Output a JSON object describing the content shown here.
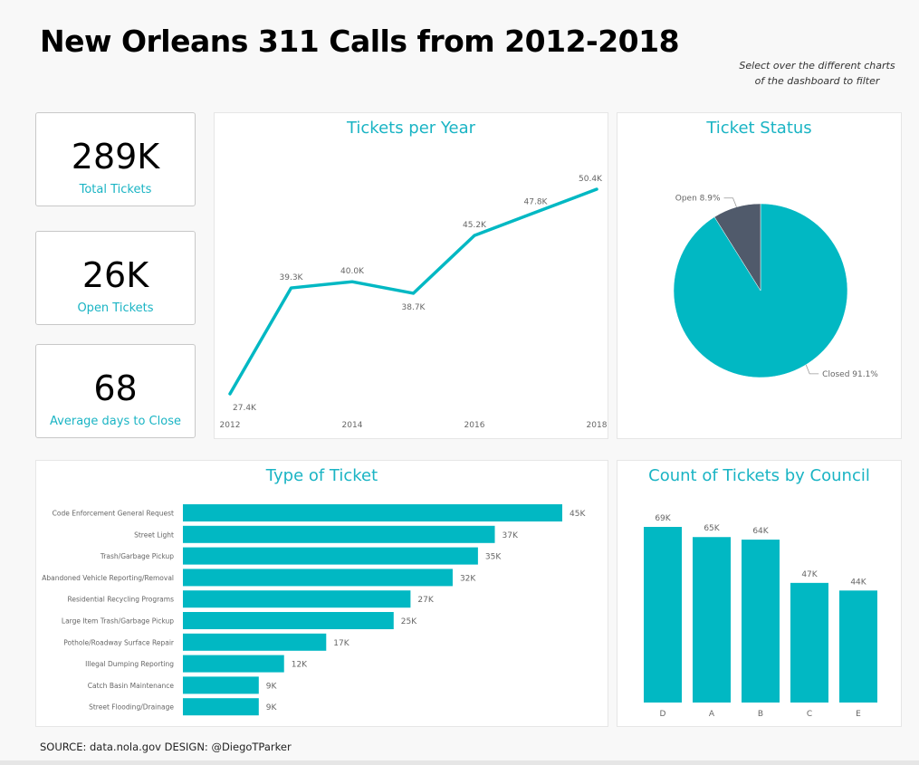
{
  "header": {
    "title": "New Orleans 311 Calls from 2012-2018",
    "hint_line1": "Select over the different charts",
    "hint_line2": "of the dashboard to filter"
  },
  "kpis": [
    {
      "value": "289K",
      "label": "Total Tickets"
    },
    {
      "value": "26K",
      "label": "Open Tickets"
    },
    {
      "value": "68",
      "label": "Average days to Close"
    }
  ],
  "footer": {
    "source": "SOURCE: data.nola.gov DESIGN: @DiegoTParker"
  },
  "colors": {
    "accent": "#01b8c3",
    "title_accent": "#1ab4c4",
    "dark_slice": "#505a6b",
    "label_gray": "#666666"
  },
  "chart_data": [
    {
      "id": "tickets-per-year",
      "type": "line",
      "title": "Tickets per Year",
      "x": [
        2012,
        2013,
        2014,
        2015,
        2016,
        2017,
        2018
      ],
      "values": [
        27.4,
        39.3,
        40.0,
        38.7,
        45.2,
        47.8,
        50.4
      ],
      "data_labels": [
        "27.4K",
        "39.3K",
        "40.0K",
        "38.7K",
        "45.2K",
        "47.8K",
        "50.4K"
      ],
      "label_position": [
        "below",
        "above",
        "above",
        "below",
        "above",
        "above",
        "above"
      ],
      "x_ticks": [
        "2012",
        "2014",
        "2016",
        "2018"
      ],
      "unit": "thousands of tickets",
      "xlabel": "",
      "ylabel": "",
      "ylim": [
        27.4,
        50.4
      ],
      "grid": false,
      "legend": "none"
    },
    {
      "id": "ticket-status",
      "type": "pie",
      "title": "Ticket Status",
      "categories": [
        "Open",
        "Closed"
      ],
      "values": [
        8.9,
        91.1
      ],
      "data_labels": [
        "Open 8.9%",
        "Closed 91.1%"
      ],
      "colors": [
        "#505a6b",
        "#01b8c3"
      ],
      "legend": "none"
    },
    {
      "id": "type-of-ticket",
      "type": "bar",
      "orientation": "horizontal",
      "title": "Type of Ticket",
      "categories": [
        "Code Enforcement General Request",
        "Street Light",
        "Trash/Garbage Pickup",
        "Abandoned Vehicle Reporting/Removal",
        "Residential Recycling Programs",
        "Large Item Trash/Garbage Pickup",
        "Pothole/Roadway Surface Repair",
        "Illegal Dumping Reporting",
        "Catch Basin Maintenance",
        "Street Flooding/Drainage"
      ],
      "values": [
        45,
        37,
        35,
        32,
        27,
        25,
        17,
        12,
        9,
        9
      ],
      "data_labels": [
        "45K",
        "37K",
        "35K",
        "32K",
        "27K",
        "25K",
        "17K",
        "12K",
        "9K",
        "9K"
      ],
      "unit": "thousands of tickets",
      "xlim": [
        0,
        45
      ],
      "grid": false,
      "legend": "none"
    },
    {
      "id": "tickets-by-council",
      "type": "bar",
      "orientation": "vertical",
      "title": "Count of Tickets by Council",
      "categories": [
        "D",
        "A",
        "B",
        "C",
        "E"
      ],
      "values": [
        69,
        65,
        64,
        47,
        44
      ],
      "data_labels": [
        "69K",
        "65K",
        "64K",
        "47K",
        "44K"
      ],
      "unit": "thousands of tickets",
      "ylim": [
        0,
        69
      ],
      "grid": false,
      "legend": "none"
    }
  ]
}
